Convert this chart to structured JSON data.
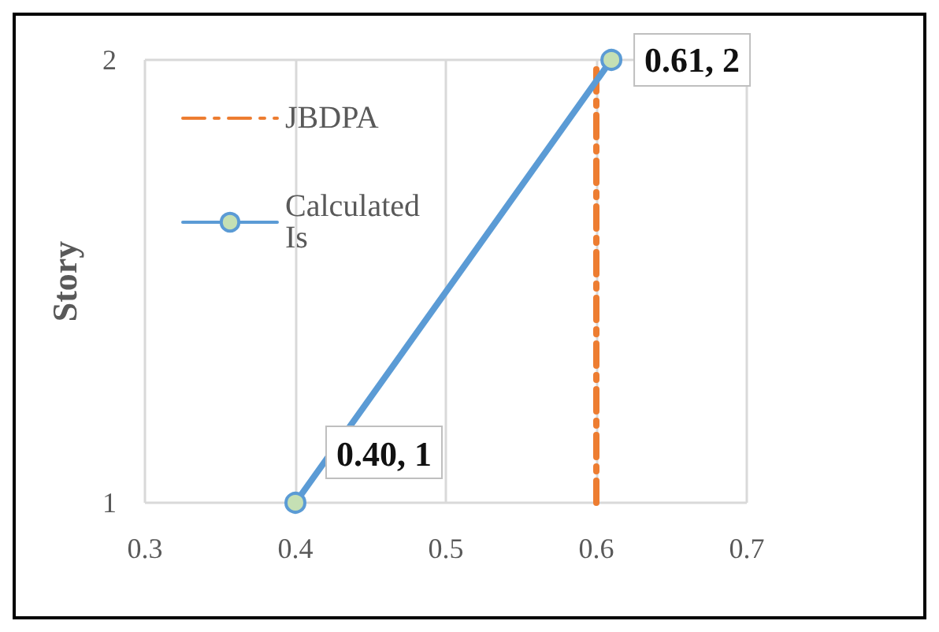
{
  "chart_data": {
    "type": "line",
    "ylabel": "Story",
    "series": [
      {
        "name": "JBDPA",
        "color": "#ed7d31",
        "x": [
          0.6,
          0.6
        ],
        "values": [
          1,
          2
        ],
        "line_style": "dashed",
        "marker": "none"
      },
      {
        "name": "Calculated Is",
        "color": "#5b9bd5",
        "x": [
          0.4,
          0.61
        ],
        "values": [
          1,
          2
        ],
        "line_style": "solid",
        "marker": "circle",
        "value_labels": [
          "0.40, 1",
          "0.61, 2"
        ]
      }
    ],
    "xlim": [
      0.3,
      0.7
    ],
    "xticks": [
      0.3,
      0.4,
      0.5,
      0.6,
      0.7
    ],
    "ylim": [
      1,
      2
    ],
    "yticks": [
      1,
      2
    ],
    "grid": "x",
    "legend": "top left"
  }
}
